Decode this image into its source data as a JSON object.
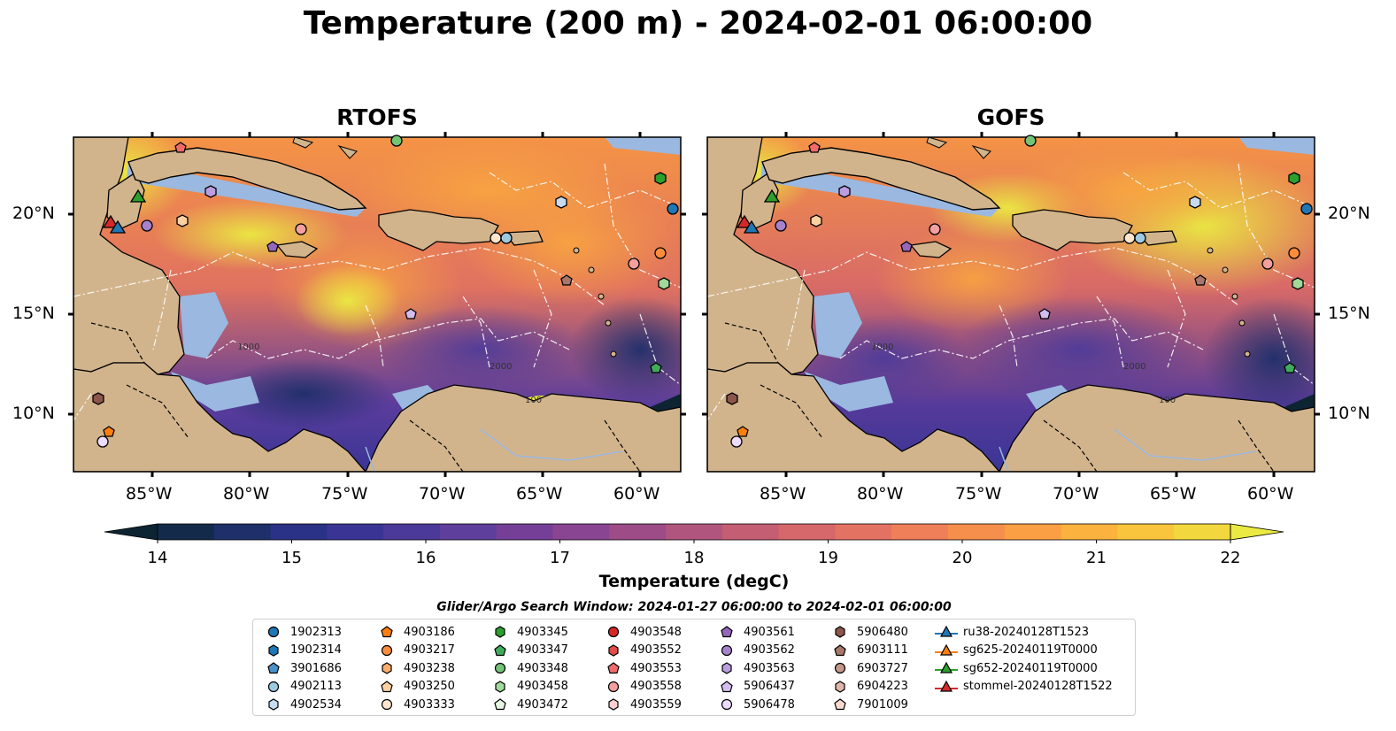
{
  "title": "Temperature (200 m) - 2024-02-01 06:00:00",
  "panels": [
    {
      "title": "RTOFS"
    },
    {
      "title": "GOFS"
    }
  ],
  "lat_ticks": [
    "20°N",
    "15°N",
    "10°N"
  ],
  "lon_ticks": [
    "85°W",
    "80°W",
    "75°W",
    "70°W",
    "65°W",
    "60°W"
  ],
  "contour_labels": [
    "1000",
    "1000",
    "100",
    "100",
    "2000",
    "2000"
  ],
  "colorbar": {
    "label": "Temperature (degC)",
    "min": 14,
    "max": 22,
    "ticks": [
      "14",
      "15",
      "16",
      "17",
      "18",
      "19",
      "20",
      "21",
      "22"
    ],
    "colors": [
      "#0d2433",
      "#142a4a",
      "#1e2f6a",
      "#2a3288",
      "#3a3595",
      "#4b3a9a",
      "#5f3f9c",
      "#753f98",
      "#8a4592",
      "#9d4c88",
      "#b0557e",
      "#c45e73",
      "#d6676a",
      "#e47263",
      "#ef7f58",
      "#f68f4c",
      "#fa9f43",
      "#fbb23e",
      "#f8c53c",
      "#f2d83e",
      "#eaea42"
    ],
    "extend": "both"
  },
  "search_window": "Glider/Argo Search Window: 2024-01-27 06:00:00 to 2024-02-01 06:00:00",
  "legend": [
    {
      "label": "1902313",
      "marker": "circle",
      "color": "#1f77b4"
    },
    {
      "label": "1902314",
      "marker": "hexagon",
      "color": "#1f77b4"
    },
    {
      "label": "3901686",
      "marker": "pentagon",
      "color": "#4a90c8"
    },
    {
      "label": "4902113",
      "marker": "circle",
      "color": "#9ecae1"
    },
    {
      "label": "4902534",
      "marker": "hexagon",
      "color": "#c6dbef"
    },
    {
      "label": "4903186",
      "marker": "pentagon",
      "color": "#ff7f0e"
    },
    {
      "label": "4903217",
      "marker": "circle",
      "color": "#fd8d3c"
    },
    {
      "label": "4903238",
      "marker": "hexagon",
      "color": "#fdae6b"
    },
    {
      "label": "4903250",
      "marker": "pentagon",
      "color": "#fdd0a2"
    },
    {
      "label": "4903333",
      "marker": "circle",
      "color": "#fee6ce"
    },
    {
      "label": "4903345",
      "marker": "hexagon",
      "color": "#2ca02c"
    },
    {
      "label": "4903347",
      "marker": "pentagon",
      "color": "#41ab5d"
    },
    {
      "label": "4903348",
      "marker": "circle",
      "color": "#74c476"
    },
    {
      "label": "4903458",
      "marker": "hexagon",
      "color": "#a1d99b"
    },
    {
      "label": "4903472",
      "marker": "pentagon",
      "color": "#e5f5e0"
    },
    {
      "label": "4903548",
      "marker": "circle",
      "color": "#d62728"
    },
    {
      "label": "4903552",
      "marker": "hexagon",
      "color": "#e34a4a"
    },
    {
      "label": "4903553",
      "marker": "pentagon",
      "color": "#ef6b6b"
    },
    {
      "label": "4903558",
      "marker": "circle",
      "color": "#f4a0a0"
    },
    {
      "label": "4903559",
      "marker": "hexagon",
      "color": "#fcd0d0"
    },
    {
      "label": "4903561",
      "marker": "pentagon",
      "color": "#9467bd"
    },
    {
      "label": "4903562",
      "marker": "circle",
      "color": "#a682cc"
    },
    {
      "label": "4903563",
      "marker": "hexagon",
      "color": "#bc9ee0"
    },
    {
      "label": "5906437",
      "marker": "pentagon",
      "color": "#d3bdf0"
    },
    {
      "label": "5906478",
      "marker": "circle",
      "color": "#ecdcff"
    },
    {
      "label": "5906480",
      "marker": "hexagon",
      "color": "#8c564b"
    },
    {
      "label": "6903111",
      "marker": "pentagon",
      "color": "#a8766a"
    },
    {
      "label": "6903727",
      "marker": "circle",
      "color": "#c4978c"
    },
    {
      "label": "6904223",
      "marker": "hexagon",
      "color": "#e0b6ac"
    },
    {
      "label": "7901009",
      "marker": "pentagon",
      "color": "#f8d8cf"
    },
    {
      "label": "ru38-20240128T1523",
      "marker": "triangle-line",
      "color": "#1f77b4"
    },
    {
      "label": "sg625-20240119T0000",
      "marker": "triangle-line",
      "color": "#ff7f0e"
    },
    {
      "label": "sg652-20240119T0000",
      "marker": "triangle-line",
      "color": "#2ca02c"
    },
    {
      "label": "stommel-20240128T1522",
      "marker": "triangle-line",
      "color": "#d62728"
    }
  ],
  "map_colors": {
    "land": "#d2b48c",
    "shelf": "#9ab8e0",
    "deep": "#0d2433",
    "coast": "#000000"
  }
}
